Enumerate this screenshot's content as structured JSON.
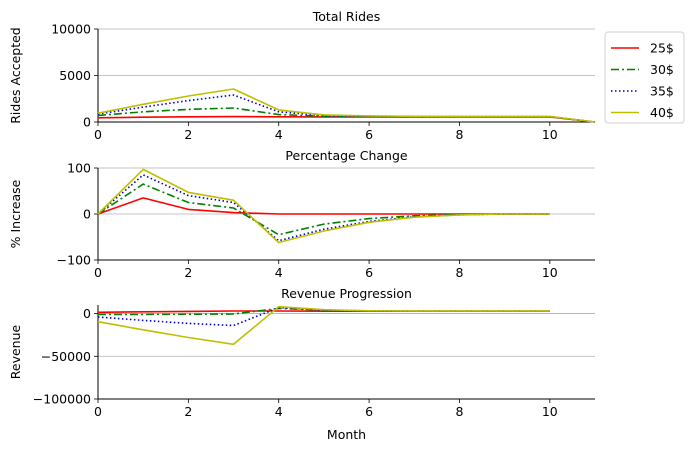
{
  "chart_data": [
    {
      "type": "line",
      "title": "Total Rides",
      "xlabel": "",
      "ylabel": "Rides Accepted",
      "xlim": [
        0,
        11
      ],
      "ylim": [
        0,
        10000
      ],
      "xticks": [
        "0",
        "2",
        "4",
        "6",
        "8",
        "10"
      ],
      "yticks": [
        "0",
        "5000",
        "10000"
      ],
      "grid": "y",
      "x": [
        0,
        1,
        2,
        3,
        4,
        5,
        6,
        7,
        8,
        9,
        10,
        11
      ],
      "series": [
        {
          "name": "25$",
          "color": "#ff0000",
          "style": "solid",
          "values": [
            450,
            520,
            560,
            580,
            560,
            550,
            550,
            550,
            550,
            550,
            550,
            0
          ]
        },
        {
          "name": "30$",
          "color": "#008000",
          "style": "dashdot",
          "values": [
            700,
            1100,
            1350,
            1500,
            800,
            620,
            580,
            560,
            560,
            560,
            560,
            0
          ]
        },
        {
          "name": "35$",
          "color": "#0000cc",
          "style": "dotted",
          "values": [
            850,
            1600,
            2300,
            2900,
            1100,
            700,
            620,
            590,
            580,
            580,
            580,
            0
          ]
        },
        {
          "name": "40$",
          "color": "#bfbf00",
          "style": "solid",
          "values": [
            950,
            1900,
            2800,
            3550,
            1300,
            760,
            660,
            610,
            600,
            600,
            600,
            0
          ]
        }
      ]
    },
    {
      "type": "line",
      "title": "Percentage Change",
      "xlabel": "",
      "ylabel": "% Increase",
      "xlim": [
        0,
        11
      ],
      "ylim": [
        -100,
        100
      ],
      "xticks": [
        "0",
        "2",
        "4",
        "6",
        "8",
        "10"
      ],
      "yticks": [
        "−100",
        "0",
        "100"
      ],
      "grid": "y",
      "x": [
        0,
        1,
        2,
        3,
        4,
        5,
        6,
        7,
        8,
        9,
        10
      ],
      "series": [
        {
          "name": "25$",
          "color": "#ff0000",
          "style": "solid",
          "values": [
            0,
            35,
            10,
            3,
            0,
            0,
            0,
            0,
            0,
            0,
            0
          ]
        },
        {
          "name": "30$",
          "color": "#008000",
          "style": "dashdot",
          "values": [
            0,
            65,
            25,
            13,
            -45,
            -22,
            -10,
            -4,
            -1,
            0,
            0
          ]
        },
        {
          "name": "35$",
          "color": "#0000cc",
          "style": "dotted",
          "values": [
            0,
            85,
            40,
            25,
            -58,
            -33,
            -16,
            -6,
            -2,
            0,
            0
          ]
        },
        {
          "name": "40$",
          "color": "#bfbf00",
          "style": "solid",
          "values": [
            0,
            97,
            47,
            30,
            -62,
            -37,
            -18,
            -7,
            -2,
            0,
            0
          ]
        }
      ]
    },
    {
      "type": "line",
      "title": "Revenue Progression",
      "xlabel": "Month",
      "ylabel": "Revenue",
      "xlim": [
        0,
        11
      ],
      "ylim": [
        -100000,
        10000
      ],
      "xticks": [
        "0",
        "2",
        "4",
        "6",
        "8",
        "10"
      ],
      "yticks": [
        "−100000",
        "−50000",
        "0"
      ],
      "grid": "y",
      "x": [
        0,
        1,
        2,
        3,
        4,
        5,
        6,
        7,
        8,
        9,
        10
      ],
      "series": [
        {
          "name": "25$",
          "color": "#ff0000",
          "style": "solid",
          "values": [
            1500,
            2000,
            2500,
            3000,
            3000,
            2800,
            2700,
            2700,
            2700,
            2700,
            2700
          ]
        },
        {
          "name": "30$",
          "color": "#008000",
          "style": "dashdot",
          "values": [
            -1000,
            -1000,
            -800,
            -500,
            6000,
            4000,
            3000,
            2800,
            2800,
            2800,
            2800
          ]
        },
        {
          "name": "35$",
          "color": "#0000cc",
          "style": "dotted",
          "values": [
            -4000,
            -8000,
            -11500,
            -14000,
            7000,
            4000,
            3000,
            2800,
            2800,
            2800,
            2800
          ]
        },
        {
          "name": "40$",
          "color": "#bfbf00",
          "style": "solid",
          "values": [
            -9500,
            -19000,
            -28000,
            -36000,
            8000,
            4500,
            3200,
            2900,
            2900,
            2900,
            2900
          ]
        }
      ]
    }
  ],
  "legend": {
    "placement": "outside-top-right",
    "entries": [
      "25$",
      "30$",
      "35$",
      "40$"
    ]
  }
}
